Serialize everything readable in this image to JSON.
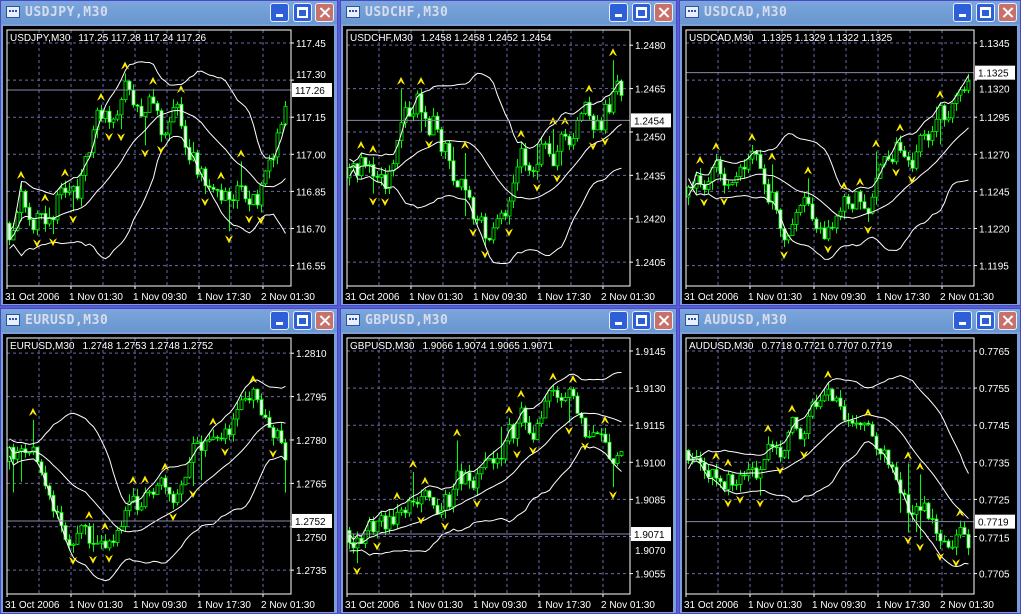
{
  "colors": {
    "background": "#000000",
    "grid": "#6b6ba8",
    "candle": "#00ff00",
    "band": "#ffffff",
    "fractal": "#ffee00",
    "price_line": "#8888aa",
    "frame": "#5b5bd6",
    "titlebar": "#7aa6dc"
  },
  "time_labels": [
    "31 Oct 2006",
    "1 Nov 01:30",
    "1 Nov 09:30",
    "1 Nov 17:30",
    "2 Nov 01:30"
  ],
  "windows": [
    {
      "title": "USDJPY,M30",
      "info": "USDJPY,M30",
      "ohlc": "117.25 117.28 117.24 117.26",
      "current_price": "117.26",
      "price_ticks": [
        "117.45",
        "117.30",
        "117.15",
        "117.00",
        "116.85",
        "116.70",
        "116.55"
      ]
    },
    {
      "title": "USDCHF,M30",
      "info": "USDCHF,M30",
      "ohlc": "1.2458 1.2458 1.2452 1.2454",
      "current_price": "1.2454",
      "price_ticks": [
        "1.2480",
        "1.2465",
        "1.2450",
        "1.2435",
        "1.2420",
        "1.2405"
      ]
    },
    {
      "title": "USDCAD,M30",
      "info": "USDCAD,M30",
      "ohlc": "1.1325 1.1329 1.1322 1.1325",
      "current_price": "1.1325",
      "price_ticks": [
        "1.1345",
        "1.1320",
        "1.1295",
        "1.1270",
        "1.1245",
        "1.1220",
        "1.1195"
      ]
    },
    {
      "title": "EURUSD,M30",
      "info": "EURUSD,M30",
      "ohlc": "1.2748 1.2753 1.2748 1.2752",
      "current_price": "1.2752",
      "price_ticks": [
        "1.2810",
        "1.2795",
        "1.2780",
        "1.2765",
        "1.2750",
        "1.2735"
      ]
    },
    {
      "title": "GBPUSD,M30",
      "info": "GBPUSD,M30",
      "ohlc": "1.9066 1.9074 1.9065 1.9071",
      "current_price": "1.9071",
      "price_ticks": [
        "1.9145",
        "1.9130",
        "1.9115",
        "1.9100",
        "1.9085",
        "1.9070",
        "1.9055"
      ]
    },
    {
      "title": "AUDUSD,M30",
      "info": "AUDUSD,M30",
      "ohlc": "0.7718 0.7721 0.7707 0.7719",
      "current_price": "0.7719",
      "price_ticks": [
        "0.7765",
        "0.7755",
        "0.7745",
        "0.7735",
        "0.7725",
        "0.7715",
        "0.7705"
      ]
    }
  ]
}
